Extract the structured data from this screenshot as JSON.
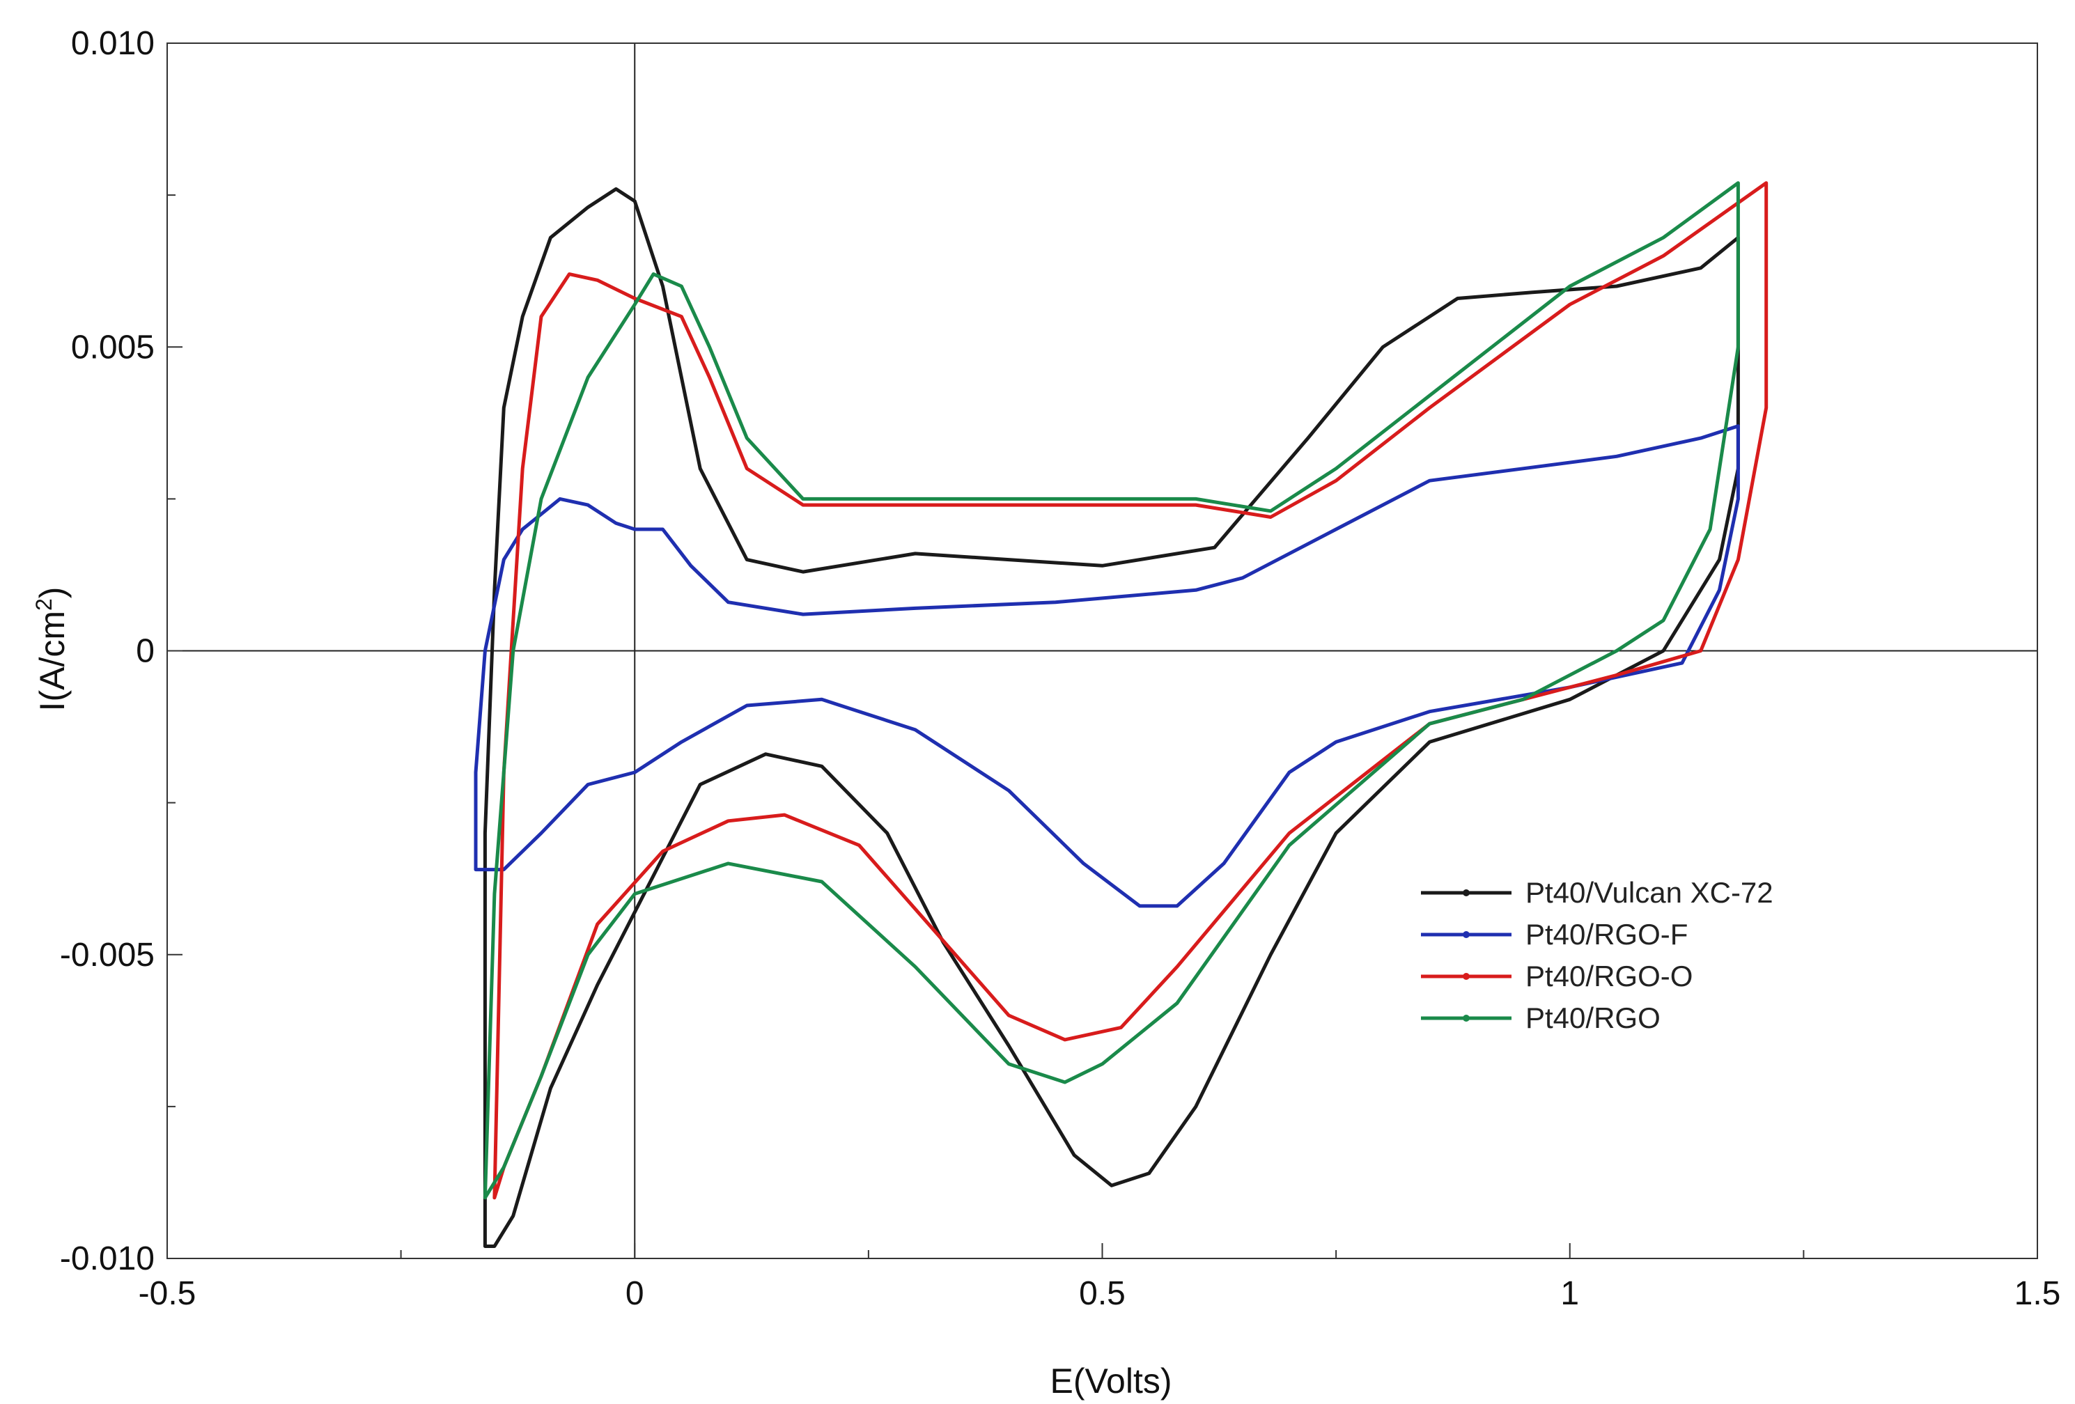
{
  "chart_data": {
    "type": "line",
    "title": "",
    "xlabel": "E(Volts)",
    "ylabel_prefix": "I(A/cm",
    "ylabel_sup": "2",
    "ylabel_suffix": ")",
    "xlim": [
      -0.5,
      1.5
    ],
    "ylim": [
      -0.01,
      0.01
    ],
    "grid": false,
    "legend_position": "lower-right",
    "x_ticks": [
      {
        "value": -0.5,
        "label": "-0.5"
      },
      {
        "value": 0,
        "label": "0"
      },
      {
        "value": 0.5,
        "label": "0.5"
      },
      {
        "value": 1,
        "label": "1"
      },
      {
        "value": 1.5,
        "label": "1.5"
      }
    ],
    "x_minor_ticks": [
      -0.25,
      0.25,
      0.75,
      1.25
    ],
    "y_ticks": [
      {
        "value": 0.01,
        "label": "0.010"
      },
      {
        "value": 0.005,
        "label": "0.005"
      },
      {
        "value": 0,
        "label": "0"
      },
      {
        "value": -0.005,
        "label": "-0.005"
      },
      {
        "value": -0.01,
        "label": "-0.010"
      }
    ],
    "y_minor_ticks": [
      0.0075,
      0.0025,
      -0.0025,
      -0.0075
    ],
    "zero_lines": {
      "x": 0,
      "y": 0
    },
    "series": [
      {
        "name": "Pt40/Vulcan XC-72",
        "color": "#1a1a1a",
        "points": [
          [
            -0.16,
            -0.0098
          ],
          [
            -0.16,
            -0.003
          ],
          [
            -0.15,
            0.001
          ],
          [
            -0.14,
            0.004
          ],
          [
            -0.12,
            0.0055
          ],
          [
            -0.09,
            0.0068
          ],
          [
            -0.05,
            0.0073
          ],
          [
            -0.02,
            0.0076
          ],
          [
            0.0,
            0.0074
          ],
          [
            0.03,
            0.006
          ],
          [
            0.07,
            0.003
          ],
          [
            0.12,
            0.0015
          ],
          [
            0.18,
            0.0013
          ],
          [
            0.3,
            0.0016
          ],
          [
            0.4,
            0.0015
          ],
          [
            0.5,
            0.0014
          ],
          [
            0.62,
            0.0017
          ],
          [
            0.72,
            0.0035
          ],
          [
            0.8,
            0.005
          ],
          [
            0.88,
            0.0058
          ],
          [
            0.96,
            0.0059
          ],
          [
            1.05,
            0.006
          ],
          [
            1.14,
            0.0063
          ],
          [
            1.18,
            0.0068
          ],
          [
            1.18,
            0.003
          ],
          [
            1.16,
            0.0015
          ],
          [
            1.1,
            0.0
          ],
          [
            1.0,
            -0.0008
          ],
          [
            0.85,
            -0.0015
          ],
          [
            0.75,
            -0.003
          ],
          [
            0.68,
            -0.005
          ],
          [
            0.6,
            -0.0075
          ],
          [
            0.55,
            -0.0086
          ],
          [
            0.51,
            -0.0088
          ],
          [
            0.47,
            -0.0083
          ],
          [
            0.4,
            -0.0065
          ],
          [
            0.33,
            -0.0048
          ],
          [
            0.27,
            -0.003
          ],
          [
            0.2,
            -0.0019
          ],
          [
            0.14,
            -0.0017
          ],
          [
            0.07,
            -0.0022
          ],
          [
            0.0,
            -0.0043
          ],
          [
            -0.04,
            -0.0055
          ],
          [
            -0.09,
            -0.0072
          ],
          [
            -0.13,
            -0.0093
          ],
          [
            -0.15,
            -0.0098
          ],
          [
            -0.16,
            -0.0098
          ]
        ]
      },
      {
        "name": "Pt40/RGO-F",
        "color": "#1f2fb0",
        "points": [
          [
            -0.17,
            -0.0036
          ],
          [
            -0.17,
            -0.002
          ],
          [
            -0.16,
            0.0
          ],
          [
            -0.14,
            0.0015
          ],
          [
            -0.12,
            0.002
          ],
          [
            -0.08,
            0.0025
          ],
          [
            -0.05,
            0.0024
          ],
          [
            -0.02,
            0.0021
          ],
          [
            0.0,
            0.002
          ],
          [
            0.03,
            0.002
          ],
          [
            0.06,
            0.0014
          ],
          [
            0.1,
            0.0008
          ],
          [
            0.18,
            0.0006
          ],
          [
            0.3,
            0.0007
          ],
          [
            0.45,
            0.0008
          ],
          [
            0.6,
            0.001
          ],
          [
            0.65,
            0.0012
          ],
          [
            0.75,
            0.002
          ],
          [
            0.85,
            0.0028
          ],
          [
            0.95,
            0.003
          ],
          [
            1.05,
            0.0032
          ],
          [
            1.14,
            0.0035
          ],
          [
            1.18,
            0.0037
          ],
          [
            1.18,
            0.0025
          ],
          [
            1.16,
            0.001
          ],
          [
            1.12,
            -0.0002
          ],
          [
            1.0,
            -0.0006
          ],
          [
            0.85,
            -0.001
          ],
          [
            0.75,
            -0.0015
          ],
          [
            0.7,
            -0.002
          ],
          [
            0.63,
            -0.0035
          ],
          [
            0.58,
            -0.0042
          ],
          [
            0.54,
            -0.0042
          ],
          [
            0.48,
            -0.0035
          ],
          [
            0.4,
            -0.0023
          ],
          [
            0.3,
            -0.0013
          ],
          [
            0.2,
            -0.0008
          ],
          [
            0.12,
            -0.0009
          ],
          [
            0.05,
            -0.0015
          ],
          [
            0.0,
            -0.002
          ],
          [
            -0.05,
            -0.0022
          ],
          [
            -0.1,
            -0.003
          ],
          [
            -0.14,
            -0.0036
          ],
          [
            -0.16,
            -0.0036
          ],
          [
            -0.17,
            -0.0036
          ]
        ]
      },
      {
        "name": "Pt40/RGO-O",
        "color": "#d81c1c",
        "points": [
          [
            -0.15,
            -0.009
          ],
          [
            -0.14,
            -0.002
          ],
          [
            -0.12,
            0.003
          ],
          [
            -0.1,
            0.0055
          ],
          [
            -0.07,
            0.0062
          ],
          [
            -0.04,
            0.0061
          ],
          [
            0.0,
            0.0058
          ],
          [
            0.05,
            0.0055
          ],
          [
            0.08,
            0.0045
          ],
          [
            0.12,
            0.003
          ],
          [
            0.18,
            0.0024
          ],
          [
            0.3,
            0.0024
          ],
          [
            0.45,
            0.0024
          ],
          [
            0.6,
            0.0024
          ],
          [
            0.68,
            0.0022
          ],
          [
            0.75,
            0.0028
          ],
          [
            0.85,
            0.004
          ],
          [
            1.0,
            0.0057
          ],
          [
            1.1,
            0.0065
          ],
          [
            1.21,
            0.0077
          ],
          [
            1.21,
            0.004
          ],
          [
            1.18,
            0.0015
          ],
          [
            1.14,
            0.0
          ],
          [
            1.05,
            -0.0004
          ],
          [
            0.95,
            -0.0008
          ],
          [
            0.85,
            -0.0012
          ],
          [
            0.7,
            -0.003
          ],
          [
            0.58,
            -0.0052
          ],
          [
            0.52,
            -0.0062
          ],
          [
            0.46,
            -0.0064
          ],
          [
            0.4,
            -0.006
          ],
          [
            0.32,
            -0.0046
          ],
          [
            0.24,
            -0.0032
          ],
          [
            0.16,
            -0.0027
          ],
          [
            0.1,
            -0.0028
          ],
          [
            0.03,
            -0.0033
          ],
          [
            -0.04,
            -0.0045
          ],
          [
            -0.1,
            -0.007
          ],
          [
            -0.14,
            -0.0085
          ],
          [
            -0.15,
            -0.009
          ]
        ]
      },
      {
        "name": "Pt40/RGO",
        "color": "#1a8a4a",
        "points": [
          [
            -0.16,
            -0.009
          ],
          [
            -0.15,
            -0.004
          ],
          [
            -0.13,
            0.0
          ],
          [
            -0.1,
            0.0025
          ],
          [
            -0.05,
            0.0045
          ],
          [
            0.0,
            0.0057
          ],
          [
            0.02,
            0.0062
          ],
          [
            0.05,
            0.006
          ],
          [
            0.08,
            0.005
          ],
          [
            0.12,
            0.0035
          ],
          [
            0.18,
            0.0025
          ],
          [
            0.3,
            0.0025
          ],
          [
            0.45,
            0.0025
          ],
          [
            0.6,
            0.0025
          ],
          [
            0.68,
            0.0023
          ],
          [
            0.75,
            0.003
          ],
          [
            0.85,
            0.0042
          ],
          [
            1.0,
            0.006
          ],
          [
            1.1,
            0.0068
          ],
          [
            1.18,
            0.0077
          ],
          [
            1.18,
            0.005
          ],
          [
            1.15,
            0.002
          ],
          [
            1.1,
            0.0005
          ],
          [
            1.05,
            0.0
          ],
          [
            0.95,
            -0.0008
          ],
          [
            0.85,
            -0.0012
          ],
          [
            0.7,
            -0.0032
          ],
          [
            0.58,
            -0.0058
          ],
          [
            0.5,
            -0.0068
          ],
          [
            0.46,
            -0.0071
          ],
          [
            0.4,
            -0.0068
          ],
          [
            0.3,
            -0.0052
          ],
          [
            0.2,
            -0.0038
          ],
          [
            0.1,
            -0.0035
          ],
          [
            0.0,
            -0.004
          ],
          [
            -0.05,
            -0.005
          ],
          [
            -0.1,
            -0.007
          ],
          [
            -0.14,
            -0.0085
          ],
          [
            -0.16,
            -0.009
          ]
        ]
      }
    ]
  }
}
